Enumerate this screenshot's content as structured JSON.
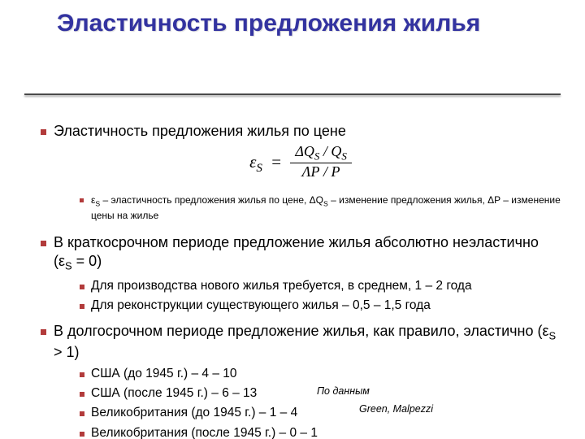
{
  "title": "Эластичность предложения жилья",
  "formula": {
    "left": "ε",
    "left_sub": "S",
    "num": "ΔQ<sub class='sub'>S</sub>&nbsp;/&nbsp;Q<sub class='sub'>S</sub>",
    "den": "ΛP&nbsp;/&nbsp;P"
  },
  "items": {
    "p1": "Эластичность предложения жилья по цене",
    "note1": "ε<sub class='sub-norm'>S</sub> – эластичность предложения жилья по цене, ΔQ<sub class='sub-norm'>S</sub> – изменение предложения жилья, ΔP – изменение цены на жилье",
    "p2": " В краткосрочном периоде предложение жилья абсолютно неэластично (ε<sub class='sub-norm'>S</sub> = 0)",
    "p2a": "Для производства нового жилья требуется, в среднем, 1 – 2 года",
    "p2b": "Для реконструкции существующего жилья – 0,5 – 1,5 года",
    "p3": " В долгосрочном периоде предложение жилья, как правило, эластично (ε<sub class='sub-norm'>S</sub> > 1)",
    "p3a": "США (до 1945 г.) – 4 – 10",
    "p3b": "США (после 1945 г.) – 6 – 13",
    "p3c": "Великобритания (до 1945 г.) – 1 – 4",
    "p3d": "Великобритания (после 1945 г.) – 0 – 1",
    "right1": "По данным",
    "right2": "Green, Malpezzi"
  },
  "style": {
    "title_color": "#3333a0",
    "bullet_color": "#b23b3b"
  }
}
